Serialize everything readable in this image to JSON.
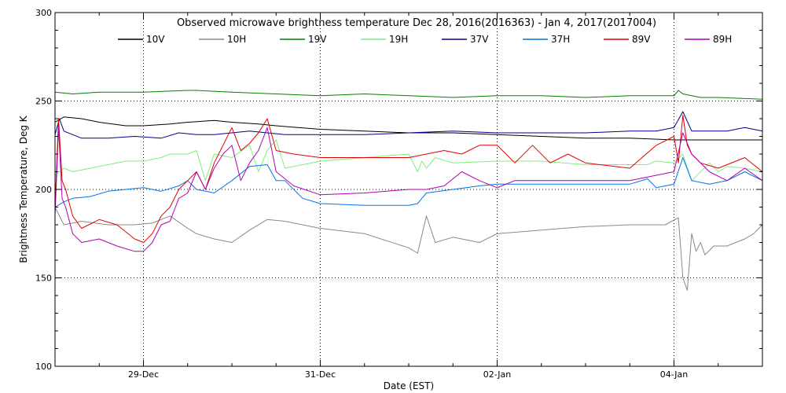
{
  "chart_data": {
    "type": "line",
    "title": "Observed microwave brightness temperature Dec 28, 2016(2016363) - Jan  4, 2017(2017004)",
    "xlabel": "Date (EST)",
    "ylabel": "Brightness Temperature, Deg K",
    "xlim": [
      0,
      8
    ],
    "ylim": [
      100,
      300
    ],
    "y_ticks": [
      100,
      150,
      200,
      250,
      300
    ],
    "x_ticks": [
      {
        "x": 1.0,
        "label": "29-Dec"
      },
      {
        "x": 3.0,
        "label": "31-Dec"
      },
      {
        "x": 5.0,
        "label": "02-Jan"
      },
      {
        "x": 7.0,
        "label": "04-Jan"
      }
    ],
    "x_minor_ticks": [
      0.5,
      1.5,
      2.0,
      2.5,
      3.5,
      4.0,
      4.5,
      5.5,
      6.0,
      6.5,
      7.5
    ],
    "x_unit_note": "x values are days since start of Dec 28, 2016 (EST)",
    "grid": "dotted",
    "legend_placement": "top",
    "series": [
      {
        "name": "10V",
        "color": "#000000",
        "x": [
          0.0,
          0.1,
          0.3,
          0.5,
          0.8,
          1.0,
          1.3,
          1.5,
          1.8,
          2.0,
          2.3,
          2.5,
          3.0,
          3.5,
          4.0,
          4.5,
          5.0,
          5.5,
          6.0,
          6.5,
          7.0,
          7.5,
          8.0
        ],
        "y": [
          238,
          241,
          240,
          238,
          236,
          236,
          237,
          238,
          239,
          238,
          237,
          236,
          234,
          233,
          232,
          232,
          231,
          230,
          229,
          229,
          228,
          228,
          228
        ]
      },
      {
        "name": "10H",
        "color": "#888888",
        "x": [
          0.0,
          0.1,
          0.3,
          0.6,
          0.9,
          1.1,
          1.3,
          1.5,
          1.6,
          1.8,
          2.0,
          2.2,
          2.4,
          2.6,
          3.0,
          3.5,
          4.0,
          4.1,
          4.2,
          4.3,
          4.5,
          4.8,
          5.0,
          5.5,
          6.0,
          6.5,
          6.9,
          7.05,
          7.1,
          7.15,
          7.2,
          7.25,
          7.3,
          7.35,
          7.45,
          7.6,
          7.8,
          7.9,
          8.0
        ],
        "y": [
          190,
          180,
          182,
          180,
          180,
          181,
          185,
          178,
          175,
          172,
          170,
          177,
          183,
          182,
          178,
          175,
          167,
          164,
          185,
          170,
          173,
          170,
          175,
          177,
          179,
          180,
          180,
          184,
          150,
          143,
          175,
          165,
          170,
          163,
          168,
          168,
          172,
          175,
          180
        ]
      },
      {
        "name": "19V",
        "color": "#008000",
        "x": [
          0.0,
          0.2,
          0.5,
          1.0,
          1.5,
          1.6,
          2.0,
          2.5,
          3.0,
          3.5,
          4.0,
          4.5,
          5.0,
          5.5,
          6.0,
          6.5,
          7.0,
          7.05,
          7.1,
          7.3,
          7.5,
          8.0
        ],
        "y": [
          255,
          254,
          255,
          255,
          256,
          256,
          255,
          254,
          253,
          254,
          253,
          252,
          253,
          253,
          252,
          253,
          253,
          256,
          254,
          252,
          252,
          251
        ]
      },
      {
        "name": "19H",
        "color": "#80ee80",
        "x": [
          0.0,
          0.1,
          0.2,
          0.4,
          0.6,
          0.8,
          1.0,
          1.2,
          1.3,
          1.5,
          1.6,
          1.7,
          1.8,
          2.0,
          2.2,
          2.3,
          2.4,
          2.5,
          2.6,
          2.8,
          3.0,
          3.5,
          4.0,
          4.1,
          4.15,
          4.2,
          4.3,
          4.5,
          5.0,
          5.5,
          6.0,
          6.5,
          6.7,
          6.8,
          7.0,
          7.1,
          7.2,
          7.4,
          7.5,
          7.6,
          7.8,
          8.0
        ],
        "y": [
          208,
          212,
          210,
          212,
          214,
          216,
          216,
          218,
          220,
          220,
          222,
          205,
          220,
          218,
          225,
          210,
          222,
          228,
          212,
          214,
          216,
          218,
          220,
          210,
          216,
          212,
          218,
          215,
          216,
          216,
          214,
          214,
          214,
          216,
          215,
          220,
          205,
          215,
          210,
          213,
          212,
          210
        ]
      },
      {
        "name": "37V",
        "color": "#00008b",
        "x": [
          0.0,
          0.05,
          0.1,
          0.3,
          0.6,
          0.9,
          1.2,
          1.4,
          1.6,
          1.8,
          2.0,
          2.2,
          2.4,
          2.6,
          3.0,
          3.5,
          4.0,
          4.5,
          5.0,
          5.5,
          6.0,
          6.5,
          6.8,
          7.0,
          7.1,
          7.2,
          7.4,
          7.6,
          7.8,
          8.0
        ],
        "y": [
          231,
          240,
          233,
          229,
          229,
          230,
          229,
          232,
          231,
          231,
          232,
          233,
          232,
          231,
          231,
          231,
          232,
          233,
          232,
          232,
          232,
          233,
          233,
          235,
          244,
          233,
          233,
          233,
          235,
          233
        ]
      },
      {
        "name": "37H",
        "color": "#0073e6",
        "x": [
          0.0,
          0.1,
          0.2,
          0.4,
          0.6,
          0.8,
          1.0,
          1.2,
          1.4,
          1.5,
          1.6,
          1.8,
          2.0,
          2.2,
          2.4,
          2.5,
          2.6,
          2.8,
          3.0,
          3.5,
          4.0,
          4.1,
          4.2,
          4.5,
          4.8,
          5.0,
          5.5,
          6.0,
          6.5,
          6.7,
          6.8,
          7.0,
          7.1,
          7.2,
          7.4,
          7.6,
          7.8,
          8.0
        ],
        "y": [
          190,
          193,
          195,
          196,
          199,
          200,
          201,
          199,
          202,
          205,
          200,
          198,
          205,
          213,
          214,
          205,
          205,
          195,
          192,
          191,
          191,
          192,
          198,
          200,
          202,
          203,
          203,
          203,
          203,
          206,
          201,
          203,
          218,
          205,
          203,
          205,
          210,
          205
        ]
      },
      {
        "name": "89V",
        "color": "#e00000",
        "x": [
          0.0,
          0.04,
          0.08,
          0.12,
          0.2,
          0.3,
          0.5,
          0.7,
          0.9,
          1.0,
          1.1,
          1.2,
          1.3,
          1.4,
          1.5,
          1.6,
          1.7,
          1.8,
          1.9,
          2.0,
          2.1,
          2.2,
          2.3,
          2.4,
          2.5,
          2.7,
          3.0,
          3.5,
          4.0,
          4.2,
          4.4,
          4.6,
          4.8,
          5.0,
          5.1,
          5.2,
          5.4,
          5.6,
          5.8,
          6.0,
          6.5,
          6.8,
          7.0,
          7.05,
          7.1,
          7.15,
          7.2,
          7.3,
          7.5,
          7.8,
          8.0
        ],
        "y": [
          190,
          240,
          205,
          200,
          185,
          178,
          183,
          180,
          172,
          170,
          175,
          185,
          190,
          200,
          205,
          210,
          200,
          215,
          225,
          235,
          222,
          226,
          232,
          240,
          222,
          220,
          218,
          218,
          218,
          220,
          222,
          220,
          225,
          225,
          220,
          215,
          225,
          215,
          220,
          215,
          212,
          225,
          230,
          215,
          242,
          225,
          220,
          215,
          212,
          218,
          210
        ]
      },
      {
        "name": "89H",
        "color": "#b000b0",
        "x": [
          0.0,
          0.04,
          0.08,
          0.12,
          0.2,
          0.3,
          0.5,
          0.7,
          0.9,
          1.0,
          1.1,
          1.2,
          1.3,
          1.4,
          1.5,
          1.6,
          1.7,
          1.8,
          1.9,
          2.0,
          2.1,
          2.2,
          2.3,
          2.4,
          2.5,
          2.7,
          3.0,
          3.5,
          4.0,
          4.2,
          4.4,
          4.6,
          4.8,
          5.0,
          5.2,
          5.5,
          5.8,
          6.0,
          6.5,
          6.8,
          7.0,
          7.1,
          7.2,
          7.4,
          7.6,
          7.8,
          8.0
        ],
        "y": [
          185,
          235,
          195,
          190,
          175,
          170,
          172,
          168,
          165,
          165,
          170,
          180,
          182,
          195,
          198,
          210,
          200,
          212,
          220,
          225,
          205,
          215,
          222,
          235,
          210,
          202,
          197,
          198,
          200,
          200,
          202,
          210,
          205,
          201,
          205,
          205,
          205,
          205,
          205,
          208,
          210,
          232,
          220,
          210,
          205,
          212,
          205
        ]
      }
    ]
  }
}
